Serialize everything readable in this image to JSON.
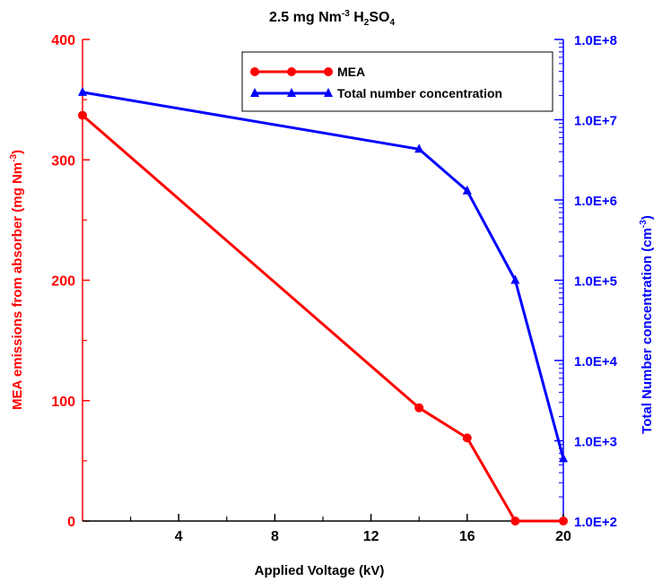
{
  "chart_data": {
    "type": "line",
    "title": "2.5 mg Nm-3 H2SO4",
    "title_parts": {
      "prefix": "2.5 mg Nm",
      "sup": "-3",
      "mid": " H",
      "sub1": "2",
      "mid2": "SO",
      "sub2": "4"
    },
    "xlabel": "Applied Voltage (kV)",
    "xlim": [
      0,
      20
    ],
    "xticks": [
      4,
      8,
      12,
      16,
      20
    ],
    "xticks_minor": [
      2,
      6,
      10,
      14,
      18
    ],
    "ylabel_left": {
      "text": "MEA emissions from absorber  (mg Nm",
      "sup": "-3",
      "close": ")"
    },
    "ylim_left": [
      0,
      400
    ],
    "yticks_left": [
      0,
      100,
      200,
      300,
      400
    ],
    "ylabel_right": {
      "text": "Total Number concentration (cm",
      "sup": "-3",
      "close": ")"
    },
    "ylim_right": [
      100,
      100000000
    ],
    "yscale_right": "log",
    "yticks_right": [
      "1.0E+2",
      "1.0E+3",
      "1.0E+4",
      "1.0E+5",
      "1.0E+6",
      "1.0E+7",
      "1.0E+8"
    ],
    "legend_position": "top-right",
    "series": [
      {
        "name": "MEA",
        "axis": "left",
        "color": "#ff0000",
        "marker": "circle",
        "x": [
          0,
          14,
          16,
          18,
          20
        ],
        "y": [
          337,
          94,
          69,
          0,
          0
        ]
      },
      {
        "name": "Total number concentration",
        "axis": "right",
        "color": "#0000ff",
        "marker": "triangle",
        "x": [
          0,
          14,
          16,
          18,
          20
        ],
        "y": [
          22000000,
          4300000,
          1300000,
          100000,
          600
        ]
      }
    ]
  }
}
